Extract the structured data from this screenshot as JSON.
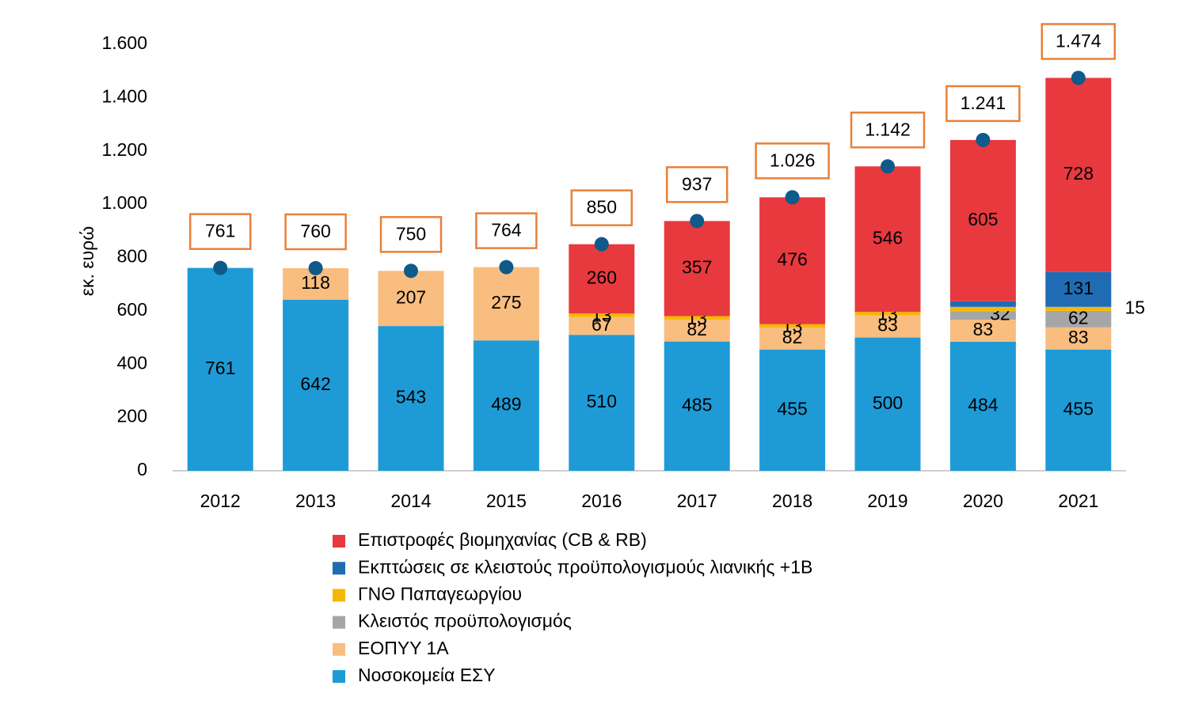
{
  "chart_data": {
    "type": "stacked-bar",
    "y_label": "εκ. ευρώ",
    "categories": [
      "2012",
      "2013",
      "2014",
      "2015",
      "2016",
      "2017",
      "2018",
      "2019",
      "2020",
      "2021"
    ],
    "series": [
      {
        "name": "Νοσοκομεία ΕΣΥ",
        "color": "#1e9bd7",
        "values": [
          761,
          642,
          543,
          489,
          510,
          485,
          455,
          500,
          484,
          455
        ]
      },
      {
        "name": "ΕΟΠΥΥ 1Α",
        "color": "#f9bd7f",
        "values": [
          null,
          118,
          207,
          275,
          67,
          82,
          82,
          83,
          83,
          83
        ]
      },
      {
        "name": "Κλειστός προϋπολογισμός",
        "color": "#a6a6a6",
        "values": [
          null,
          null,
          null,
          null,
          null,
          null,
          null,
          null,
          32,
          62
        ]
      },
      {
        "name": "ΓΝΘ Παπαγεωργίου",
        "color": "#f5b800",
        "values": [
          null,
          null,
          null,
          null,
          13,
          13,
          13,
          13,
          16,
          15
        ]
      },
      {
        "name": "Εκπτώσεις σε κλειστούς προϋπολογισμούς λιανικής +1Β",
        "color": "#1f6cb5",
        "values": [
          null,
          null,
          null,
          null,
          null,
          null,
          null,
          null,
          21,
          131
        ]
      },
      {
        "name": "Επιστροφές βιομηχανίας (CB & RB)",
        "color": "#e8393f",
        "values": [
          null,
          null,
          null,
          null,
          260,
          357,
          476,
          546,
          605,
          728
        ]
      }
    ],
    "totals": {
      "color": "#0e5a8a",
      "box_color": "#e8803a",
      "values": [
        761,
        760,
        750,
        764,
        850,
        937,
        1026,
        1142,
        1241,
        1474
      ],
      "value_labels": [
        "761",
        "760",
        "750",
        "764",
        "850",
        "937",
        "1.026",
        "1.142",
        "1.241",
        "1.474"
      ]
    },
    "ylim": [
      0,
      1600
    ],
    "yticks": [
      0,
      200,
      400,
      600,
      800,
      {
        "value": 1000,
        "label": "1.000"
      },
      {
        "value": 1200,
        "label": "1.200"
      },
      {
        "value": 1400,
        "label": "1.400"
      },
      {
        "value": 1600,
        "label": "1.600"
      }
    ],
    "grid": false,
    "legend": "bottom"
  }
}
